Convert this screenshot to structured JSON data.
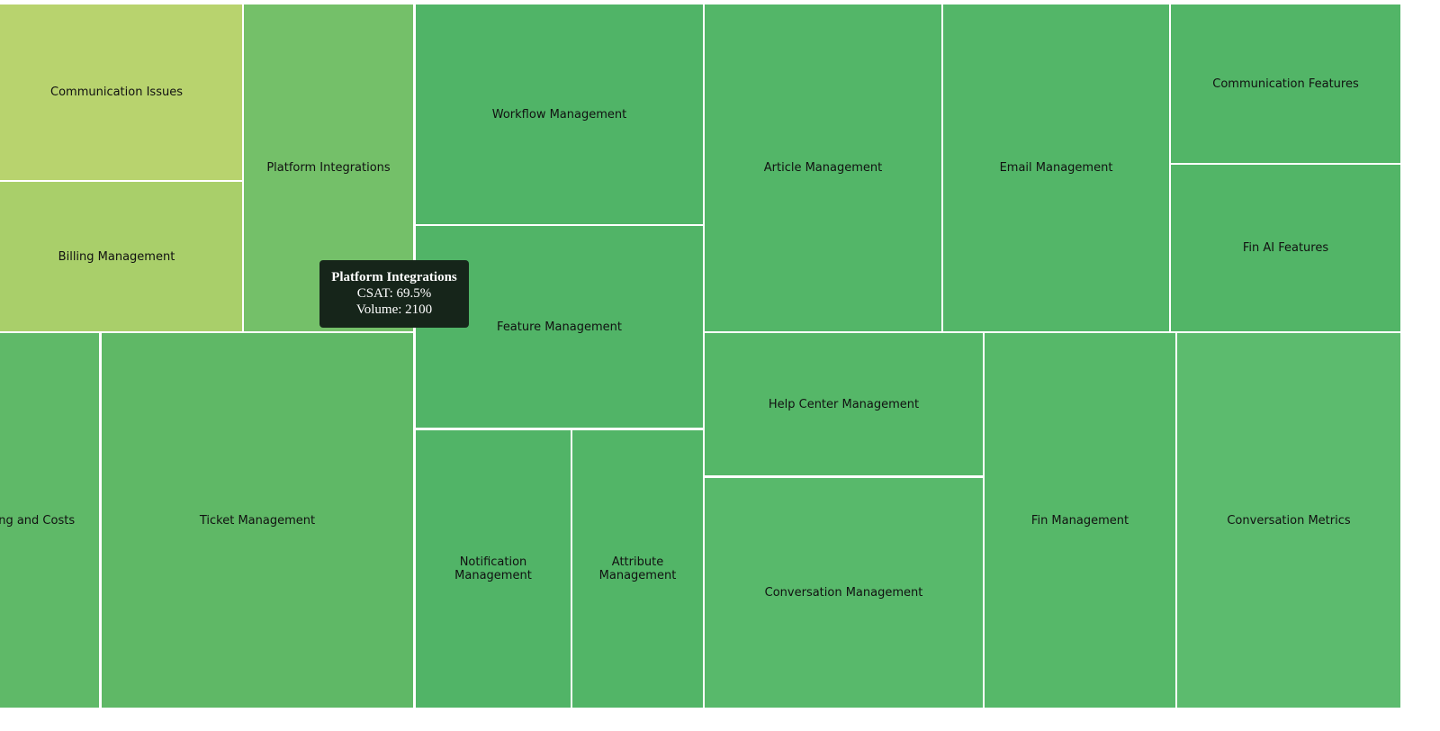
{
  "tiles": [
    {
      "label": "Communication Issues"
    },
    {
      "label": "Billing Management"
    },
    {
      "label": "Platform Integrations"
    },
    {
      "label": "Workflow Management"
    },
    {
      "label": "Feature Management"
    },
    {
      "label": "Notification Management"
    },
    {
      "label": "Attribute Management"
    },
    {
      "label": "Article Management"
    },
    {
      "label": "Email Management"
    },
    {
      "label": "Communication Features"
    },
    {
      "label": "Fin AI Features"
    },
    {
      "label": "Pricing and Costs"
    },
    {
      "label": "Ticket Management"
    },
    {
      "label": "Help Center Management"
    },
    {
      "label": "Conversation Management"
    },
    {
      "label": "Fin Management"
    },
    {
      "label": "Conversation Metrics"
    }
  ],
  "tooltip": {
    "title": "Platform Integrations",
    "lines": [
      "CSAT: 69.5%",
      "Volume: 2100"
    ]
  }
}
